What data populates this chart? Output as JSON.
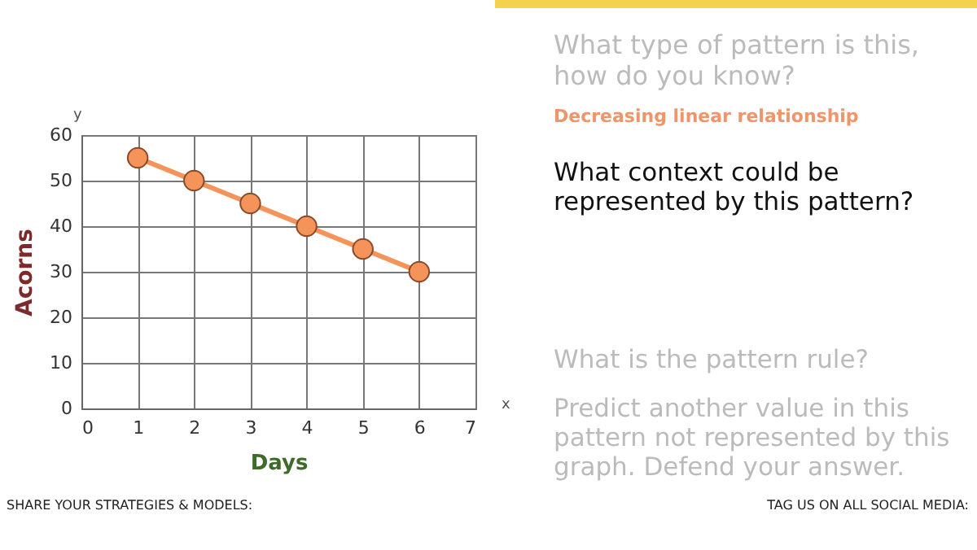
{
  "chart_data": {
    "type": "line",
    "xlabel": "Days",
    "ylabel": "Acorns",
    "x": [
      1,
      2,
      3,
      4,
      5,
      6
    ],
    "series": [
      {
        "color": "#f4935a",
        "values": [
          55,
          50,
          45,
          40,
          35,
          30
        ]
      }
    ],
    "xlim": [
      0,
      7
    ],
    "xticks": [
      0,
      1,
      2,
      3,
      4,
      5,
      6,
      7
    ],
    "ylim": [
      0,
      60
    ],
    "yticks": [
      0,
      10,
      20,
      30,
      40,
      50,
      60
    ],
    "grid": true,
    "marker": "circle",
    "line_style": "solid",
    "annotations": [
      "x",
      "y",
      "What type of pattern is this, how do you know?",
      "Decreasing linear relationship",
      "What context could be represented by this pattern?",
      "What is the pattern rule?",
      "Predict another value in this pattern not represented by this graph. Defend your answer.",
      "SHARE YOUR STRATEGIES & MODELS:",
      "TAG US ON ALL SOCIAL MEDIA:"
    ]
  }
}
